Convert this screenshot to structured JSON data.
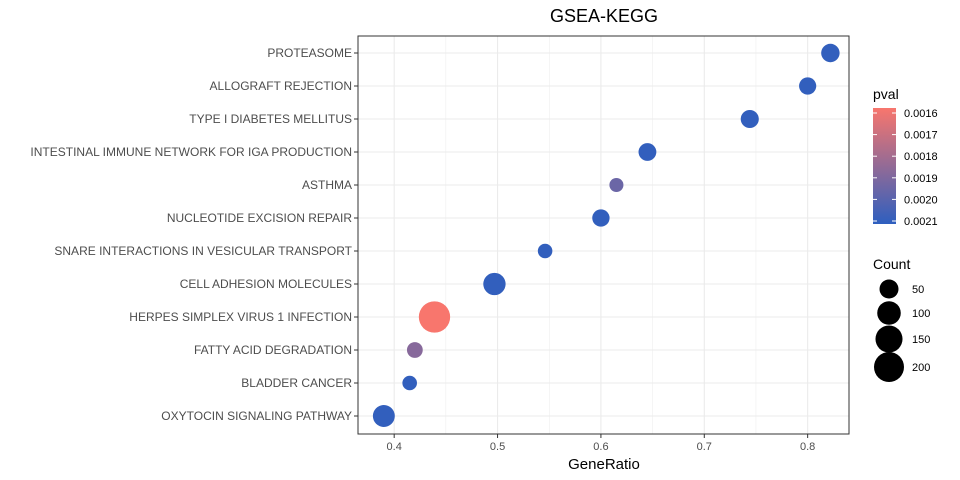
{
  "chart_data": {
    "type": "scatter",
    "title": "GSEA-KEGG",
    "xlabel": "GeneRatio",
    "ylabel": "",
    "xlim": [
      0.365,
      0.84
    ],
    "xticks": [
      0.4,
      0.5,
      0.6,
      0.7,
      0.8
    ],
    "xtick_labels": [
      "0.4",
      "0.5",
      "0.6",
      "0.7",
      "0.8"
    ],
    "grid": true,
    "legend_position": "right",
    "categories": [
      "PROTEASOME",
      "ALLOGRAFT REJECTION",
      "TYPE I DIABETES MELLITUS",
      "INTESTINAL IMMUNE NETWORK FOR IGA PRODUCTION",
      "ASTHMA",
      "NUCLEOTIDE EXCISION REPAIR",
      "SNARE INTERACTIONS IN VESICULAR TRANSPORT",
      "CELL ADHESION MOLECULES",
      "HERPES SIMPLEX VIRUS 1 INFECTION",
      "FATTY ACID DEGRADATION",
      "BLADDER CANCER",
      "OXYTOCIN SIGNALING PATHWAY"
    ],
    "points": [
      {
        "term": "PROTEASOME",
        "gene_ratio": 0.822,
        "count": 45,
        "pval": 0.00209
      },
      {
        "term": "ALLOGRAFT REJECTION",
        "gene_ratio": 0.8,
        "count": 35,
        "pval": 0.00209
      },
      {
        "term": "TYPE I DIABETES MELLITUS",
        "gene_ratio": 0.744,
        "count": 42,
        "pval": 0.00209
      },
      {
        "term": "INTESTINAL IMMUNE NETWORK FOR IGA PRODUCTION",
        "gene_ratio": 0.645,
        "count": 40,
        "pval": 0.00209
      },
      {
        "term": "ASTHMA",
        "gene_ratio": 0.615,
        "count": 15,
        "pval": 0.00195
      },
      {
        "term": "NUCLEOTIDE EXCISION REPAIR",
        "gene_ratio": 0.6,
        "count": 36,
        "pval": 0.00209
      },
      {
        "term": "SNARE INTERACTIONS IN VESICULAR TRANSPORT",
        "gene_ratio": 0.546,
        "count": 18,
        "pval": 0.00209
      },
      {
        "term": "CELL ADHESION MOLECULES",
        "gene_ratio": 0.497,
        "count": 85,
        "pval": 0.00209
      },
      {
        "term": "HERPES SIMPLEX VIRUS 1 INFECTION",
        "gene_ratio": 0.439,
        "count": 225,
        "pval": 0.0016
      },
      {
        "term": "FATTY ACID DEGRADATION",
        "gene_ratio": 0.42,
        "count": 25,
        "pval": 0.00188
      },
      {
        "term": "BLADDER CANCER",
        "gene_ratio": 0.415,
        "count": 18,
        "pval": 0.00209
      },
      {
        "term": "OXYTOCIN SIGNALING PATHWAY",
        "gene_ratio": 0.39,
        "count": 80,
        "pval": 0.00209
      }
    ],
    "color_legend": {
      "title": "pval",
      "min": 0.0016,
      "max": 0.0021,
      "ticks": [
        "0.0016",
        "0.0017",
        "0.0018",
        "0.0019",
        "0.0020",
        "0.0021"
      ],
      "low_color": "#F8766D",
      "high_color": "#2E5FBF"
    },
    "size_legend": {
      "title": "Count",
      "values": [
        50,
        100,
        150,
        200
      ],
      "labels": [
        "50",
        "100",
        "150",
        "200"
      ],
      "color": "#000000"
    },
    "grid_color": "#ebebeb",
    "panel_border_color": "#333333"
  }
}
